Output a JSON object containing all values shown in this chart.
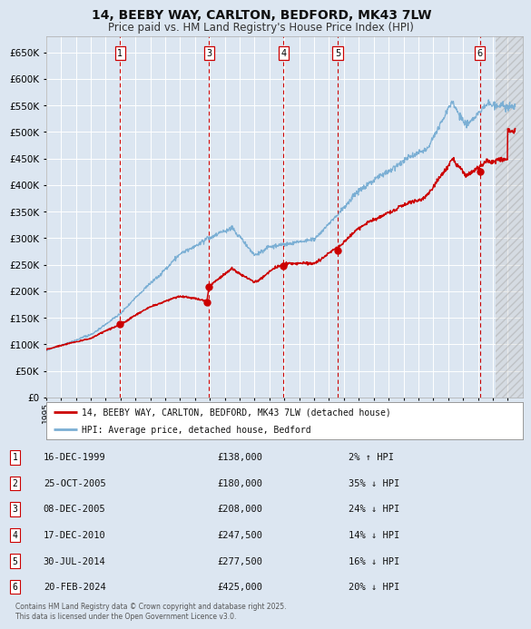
{
  "title": "14, BEEBY WAY, CARLTON, BEDFORD, MK43 7LW",
  "subtitle": "Price paid vs. HM Land Registry's House Price Index (HPI)",
  "title_fontsize": 10,
  "subtitle_fontsize": 8.5,
  "background_color": "#dce6f1",
  "plot_bg_color": "#dce6f1",
  "grid_color": "#ffffff",
  "ylim": [
    0,
    680000
  ],
  "yticks": [
    0,
    50000,
    100000,
    150000,
    200000,
    250000,
    300000,
    350000,
    400000,
    450000,
    500000,
    550000,
    600000,
    650000
  ],
  "ytick_labels": [
    "£0",
    "£50K",
    "£100K",
    "£150K",
    "£200K",
    "£250K",
    "£300K",
    "£350K",
    "£400K",
    "£450K",
    "£500K",
    "£550K",
    "£600K",
    "£650K"
  ],
  "transactions": [
    {
      "num": 1,
      "date": "16-DEC-1999",
      "price": 138000,
      "pct": "2% ↑ HPI",
      "year_x": 1999.96
    },
    {
      "num": 2,
      "date": "25-OCT-2005",
      "price": 180000,
      "pct": "35% ↓ HPI",
      "year_x": 2005.81
    },
    {
      "num": 3,
      "date": "08-DEC-2005",
      "price": 208000,
      "pct": "24% ↓ HPI",
      "year_x": 2005.93
    },
    {
      "num": 4,
      "date": "17-DEC-2010",
      "price": 247500,
      "pct": "14% ↓ HPI",
      "year_x": 2010.95
    },
    {
      "num": 5,
      "date": "30-JUL-2014",
      "price": 277500,
      "pct": "16% ↓ HPI",
      "year_x": 2014.58
    },
    {
      "num": 6,
      "date": "20-FEB-2024",
      "price": 425000,
      "pct": "20% ↓ HPI",
      "year_x": 2024.13
    }
  ],
  "legend_line1": "14, BEEBY WAY, CARLTON, BEDFORD, MK43 7LW (detached house)",
  "legend_line2": "HPI: Average price, detached house, Bedford",
  "footer": "Contains HM Land Registry data © Crown copyright and database right 2025.\nThis data is licensed under the Open Government Licence v3.0.",
  "red_line_color": "#cc0000",
  "blue_line_color": "#7bafd4",
  "vline_color": "#cc0000",
  "xmin": 1995,
  "xmax": 2027,
  "hatch_start": 2025.17
}
